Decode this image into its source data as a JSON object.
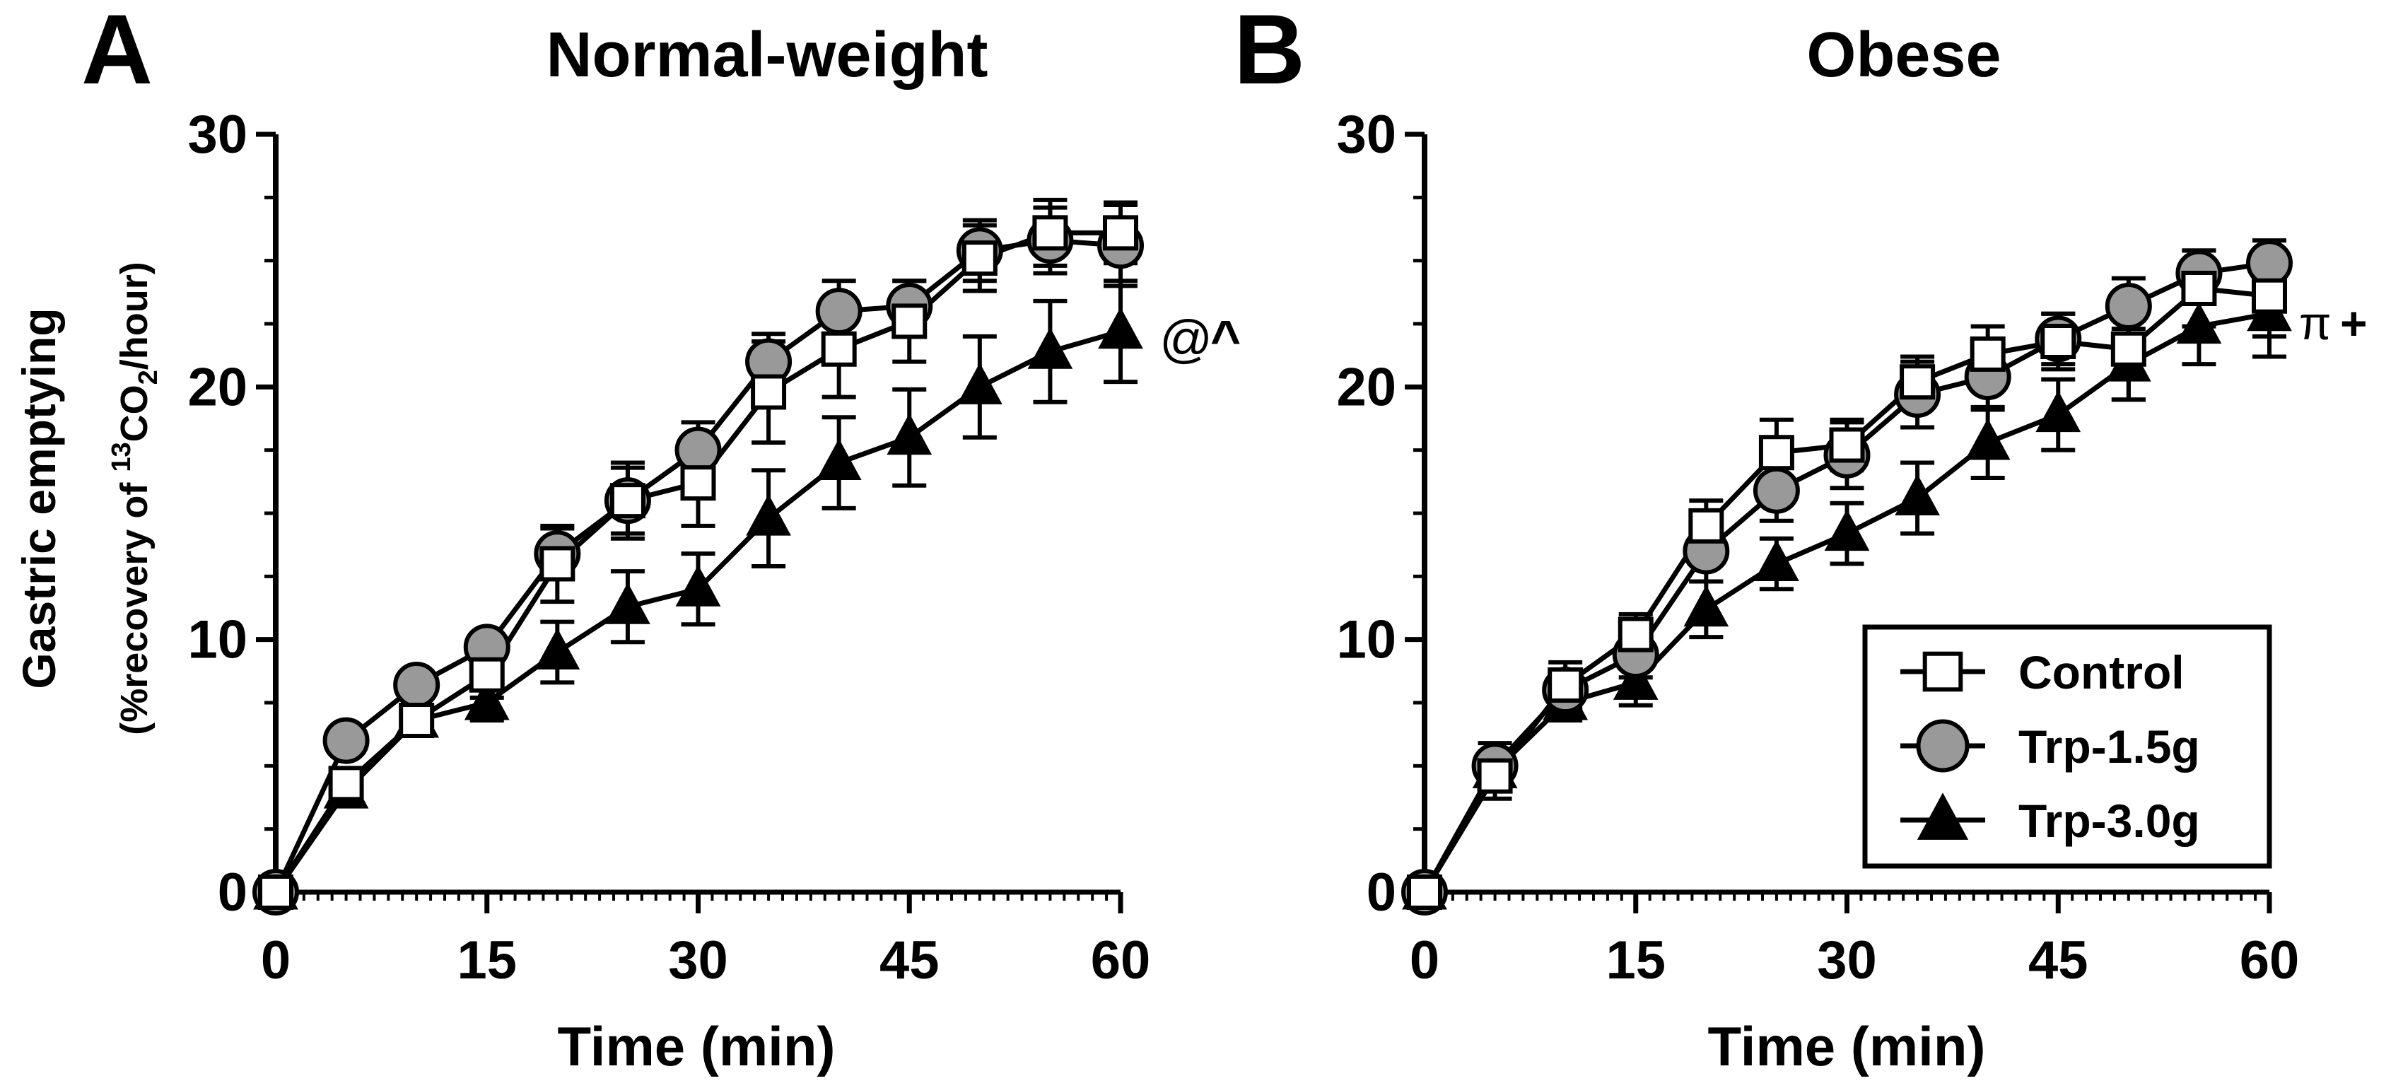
{
  "figure": {
    "y_label_line1": "Gastric emptying",
    "y_label_line2_prefix": "(%recovery of ",
    "y_label_line2_sup": "13",
    "y_label_line2_mid": "CO",
    "y_label_line2_sub": "2",
    "y_label_line2_suffix": "/hour)"
  },
  "legend": {
    "entries": [
      "Control",
      "Trp-1.5g",
      "Trp-3.0g"
    ]
  },
  "colors": {
    "control_fill": "#ffffff",
    "trp15_fill": "#999999",
    "trp30_fill": "#000000",
    "stroke": "#000000"
  },
  "chart_data": [
    {
      "type": "line",
      "panel_letter": "A",
      "title": "Normal-weight",
      "xlabel": "Time (min)",
      "ylabel": "Gastric emptying (%recovery of 13CO2/hour)",
      "xlim": [
        0,
        60
      ],
      "ylim": [
        0,
        30
      ],
      "x_ticks": [
        0,
        15,
        30,
        45,
        60
      ],
      "x_tick_labels": [
        "0",
        "15",
        "30",
        "45",
        "60"
      ],
      "y_ticks": [
        0,
        10,
        20,
        30
      ],
      "y_tick_labels": [
        "0",
        "10",
        "20",
        "30"
      ],
      "x": [
        0,
        5,
        10,
        15,
        20,
        25,
        30,
        35,
        40,
        45,
        50,
        55,
        60
      ],
      "series": [
        {
          "name": "Control",
          "marker": "square",
          "values": [
            0,
            4.3,
            6.8,
            8.6,
            13.0,
            15.5,
            16.2,
            19.8,
            21.5,
            22.6,
            25.1,
            26.1,
            26.1
          ],
          "errors": [
            0,
            0.5,
            0.6,
            0.9,
            1.5,
            1.5,
            1.7,
            2.0,
            1.9,
            1.6,
            1.3,
            1.3,
            1.2
          ]
        },
        {
          "name": "Trp-1.5g",
          "marker": "circle",
          "values": [
            0,
            6.0,
            8.2,
            9.7,
            13.4,
            15.5,
            17.5,
            21.0,
            23.0,
            23.2,
            25.4,
            25.8,
            25.6
          ],
          "errors": [
            0,
            0.4,
            0.4,
            0.5,
            1.0,
            1.3,
            1.1,
            1.1,
            1.2,
            1.0,
            1.2,
            1.3,
            1.6
          ]
        },
        {
          "name": "Trp-3.0g",
          "marker": "triangle",
          "values": [
            0,
            4.0,
            6.8,
            7.5,
            9.5,
            11.3,
            12.0,
            14.8,
            17.0,
            18.0,
            20.0,
            21.4,
            22.2
          ],
          "errors": [
            0,
            0.5,
            0.6,
            0.7,
            1.2,
            1.4,
            1.4,
            1.9,
            1.8,
            1.9,
            2.0,
            2.0,
            2.0
          ]
        }
      ],
      "annotations": [
        "@",
        "^"
      ]
    },
    {
      "type": "line",
      "panel_letter": "B",
      "title": "Obese",
      "xlabel": "Time (min)",
      "ylabel": "",
      "xlim": [
        0,
        60
      ],
      "ylim": [
        0,
        30
      ],
      "x_ticks": [
        0,
        15,
        30,
        45,
        60
      ],
      "x_tick_labels": [
        "0",
        "15",
        "30",
        "45",
        "60"
      ],
      "y_ticks": [
        0,
        10,
        20,
        30
      ],
      "y_tick_labels": [
        "0",
        "10",
        "20",
        "30"
      ],
      "x": [
        0,
        5,
        10,
        15,
        20,
        25,
        30,
        35,
        40,
        45,
        50,
        55,
        60
      ],
      "series": [
        {
          "name": "Control",
          "marker": "square",
          "values": [
            0,
            4.6,
            8.2,
            10.2,
            14.5,
            17.4,
            17.7,
            20.2,
            21.3,
            21.8,
            21.5,
            23.9,
            23.6
          ],
          "errors": [
            0,
            0.9,
            0.9,
            0.8,
            1.0,
            1.3,
            1.0,
            1.0,
            1.1,
            1.1,
            2.0,
            1.5,
            1.6
          ]
        },
        {
          "name": "Trp-1.5g",
          "marker": "circle",
          "values": [
            0,
            5.0,
            8.0,
            9.4,
            13.5,
            15.9,
            17.3,
            19.7,
            20.4,
            21.9,
            23.2,
            24.5,
            24.9
          ],
          "errors": [
            0,
            0.9,
            0.8,
            0.9,
            1.2,
            1.2,
            1.3,
            1.3,
            1.3,
            1.0,
            1.1,
            0.9,
            0.9
          ]
        },
        {
          "name": "Trp-3.0g",
          "marker": "triangle",
          "values": [
            0,
            4.8,
            7.5,
            8.3,
            11.2,
            13.0,
            14.2,
            15.6,
            17.8,
            18.9,
            20.9,
            22.4,
            22.9
          ],
          "errors": [
            0,
            0.7,
            0.7,
            0.9,
            1.1,
            1.0,
            1.2,
            1.4,
            1.4,
            1.4,
            1.4,
            1.5,
            1.7
          ]
        }
      ],
      "annotations": [
        "π",
        "+"
      ]
    }
  ]
}
